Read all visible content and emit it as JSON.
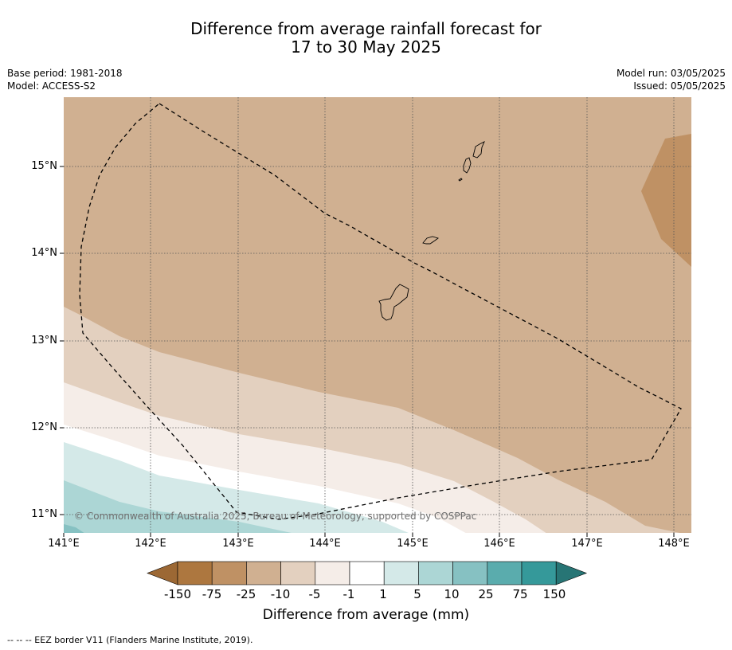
{
  "title_line1": "Difference from average rainfall forecast for",
  "title_line2": "17 to 30 May 2025",
  "base_period": "Base period: 1981-2018",
  "model": "Model: ACCESS-S2",
  "model_run": "Model run: 03/05/2025",
  "issued": "Issued: 05/05/2025",
  "latitude_labels": [
    "15°N",
    "14°N",
    "13°N",
    "12°N",
    "11°N"
  ],
  "longitude_labels": [
    "141°E",
    "142°E",
    "143°E",
    "144°E",
    "145°E",
    "146°E",
    "147°E",
    "148°E"
  ],
  "copyright": "© Commonwealth of Australia 2025, Bureau of Meteorology, supported by COSPPac",
  "colorbar": {
    "ticks": [
      "-150",
      "-75",
      "-25",
      "-10",
      "-5",
      "-1",
      "1",
      "5",
      "10",
      "25",
      "75",
      "150"
    ],
    "colors": [
      "#9c6834",
      "#ad773f",
      "#bf9164",
      "#d0b091",
      "#e3d0bf",
      "#f5ede8",
      "#ffffff",
      "#d4e9e8",
      "#acd6d5",
      "#86c1c2",
      "#5aacad",
      "#35999a",
      "#277575"
    ],
    "title": "Difference from average (mm)"
  },
  "footnote": "--  --  -- EEZ border V11 (Flanders Marine Institute, 2019)."
}
